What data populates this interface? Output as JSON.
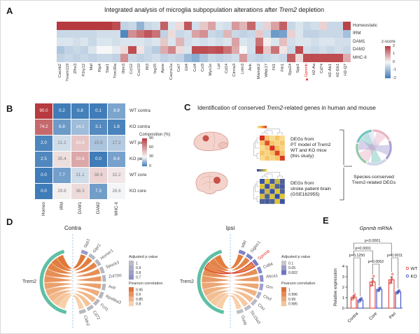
{
  "panel_a": {
    "label": "A",
    "title_pre": "Integrated analysis of microglia subpopulation alterations after ",
    "title_italic": "Trem2",
    "title_post": " depletion"
  },
  "panel_b": {
    "label": "B"
  },
  "panel_c": {
    "label": "C",
    "title_pre": "Identification of conserved ",
    "title_italic": "Trem2",
    "title_post": "-related genes in human and mouse",
    "mouse_lines": [
      "DEGs from",
      "PT model of Trem2",
      "WT and KO mice",
      "(this study)"
    ],
    "human_lines": [
      "DEGs from",
      "stroke patient brain",
      "(GSE162955)"
    ],
    "result_lines": [
      "Species-conserved",
      "Trem2-related DEGs"
    ],
    "icon_colors": [
      "#6ac4bd",
      "#ebb1c3",
      "#a99bd0",
      "#ccd3ec",
      "#8fc9a8"
    ],
    "mouse_matrix": [
      [
        1,
        0.3,
        0.15,
        0.3,
        0.15
      ],
      [
        0.3,
        0.85,
        0.3,
        0.2,
        0.3
      ],
      [
        0.15,
        0.3,
        1,
        0.35,
        0.2
      ],
      [
        0.3,
        0.2,
        0.35,
        0.9,
        0.3
      ],
      [
        0.15,
        0.3,
        0.2,
        0.3,
        0.95
      ]
    ],
    "human_matrix": [
      [
        0.1,
        0.9,
        0.15,
        0.8,
        0.2
      ],
      [
        0.9,
        0.1,
        0.85,
        0.2,
        0.15
      ],
      [
        0.15,
        0.8,
        0.1,
        0.9,
        0.2
      ],
      [
        0.85,
        0.2,
        0.9,
        0.05,
        0.9
      ],
      [
        0.2,
        0.15,
        0.2,
        0.9,
        0.1
      ]
    ]
  },
  "panel_d": {
    "label": "D"
  },
  "panel_e": {
    "label": "E",
    "title_italic": "Gpnmb",
    "title_post": " mRNA"
  },
  "chart_data": [
    {
      "id": "panel_a_heatmap",
      "type": "heatmap",
      "title": "Integrated analysis of microglia subpopulation alterations after Trem2 depletion",
      "rows": [
        "Homeostatic",
        "IRM",
        "DAM1",
        "DAM2",
        "MHC-II"
      ],
      "columns": [
        "Cacnb2",
        "Tmem119",
        "Zfhx3",
        "P2ry12",
        "Maf",
        "Rtp4",
        "Stat1",
        "Trim30a",
        "Ifitm3",
        "Ccl12",
        "Cxcl10",
        "Ifit3",
        "Isg15",
        "Apoe",
        "Cacna1a",
        "Cst7",
        "Etl4",
        "Ccl4",
        "Ccl3",
        "Myo1e",
        "Lpl",
        "Cd14",
        "Ctnna3",
        "Lrtm3",
        "Ank",
        "Mamdc2",
        "Wfdc17",
        "Ftl1",
        "Fth1",
        "Rps24",
        "Spp1",
        "Gpnmb",
        "H2-Aa",
        "Cd74",
        "H2-Ab1",
        "H2-Eb1",
        "H2-Q7"
      ],
      "values": [
        [
          2,
          2,
          2,
          2,
          2,
          2,
          2,
          1.8,
          -0.6,
          -0.5,
          -1.1,
          -0.5,
          -0.4,
          1.6,
          -0.3,
          0.3,
          1.7,
          -0.4,
          0.5,
          0.9,
          -0.3,
          -0.4,
          1.0,
          0.7,
          1.5,
          -0.4,
          0.4,
          0.9,
          1.6,
          -0.5,
          -0.3,
          -0.5,
          -0.4,
          0.4,
          -0.5,
          -0.5,
          1.9
        ],
        [
          -0.5,
          -0.5,
          -0.5,
          -0.5,
          -0.5,
          -0.4,
          -0.4,
          -0.4,
          -1.8,
          1.1,
          1.4,
          1.7,
          1.4,
          -0.6,
          0.3,
          -0.5,
          -0.4,
          0.9,
          1.1,
          -0.5,
          -0.6,
          0.7,
          -0.5,
          -0.6,
          -0.5,
          0.5,
          -0.5,
          -1.5,
          -1.4,
          0.4,
          -0.3,
          -0.6,
          -0.6,
          -0.5,
          -0.5,
          -0.5,
          -0.9
        ],
        [
          -0.3,
          -0.3,
          -0.4,
          -0.3,
          -0.5,
          -0.3,
          -0.3,
          -0.4,
          -0.3,
          -0.3,
          -0.3,
          -0.4,
          -0.3,
          0.5,
          -0.3,
          0.7,
          -0.4,
          -0.3,
          -0.4,
          -0.3,
          -0.4,
          -0.3,
          0.9,
          -0.3,
          -0.4,
          1.4,
          0.1,
          -0.3,
          0.6,
          -0.4,
          -0.3,
          -0.3,
          -0.4,
          -0.3,
          -0.3,
          -0.4,
          -0.4
        ],
        [
          -0.8,
          -0.6,
          -0.5,
          -0.6,
          -0.3,
          0,
          0,
          -0.2,
          0.3,
          1.8,
          0.2,
          -0.5,
          -0.7,
          0.8,
          1.2,
          0.3,
          -0.3,
          1.8,
          1.8,
          1.7,
          1.8,
          1.4,
          0.8,
          0,
          -0.4,
          1.8,
          0.5,
          1.4,
          0.2,
          -0.5,
          1.8,
          -0.4,
          -0.5,
          -0.4,
          -0.5,
          -0.4,
          -0.5
        ],
        [
          -0.6,
          -0.5,
          -0.6,
          -0.5,
          -0.6,
          -0.5,
          -0.5,
          -0.6,
          1.1,
          -0.5,
          -0.6,
          -0.5,
          -0.4,
          -0.6,
          -0.5,
          -0.6,
          -1.0,
          -1.2,
          -0.8,
          -0.5,
          -0.6,
          -0.5,
          -0.4,
          1.0,
          -0.5,
          -0.6,
          -0.5,
          -0.4,
          -0.5,
          1.6,
          0.3,
          1.8,
          1.8,
          1.8,
          1.8,
          1.8,
          0.8
        ]
      ],
      "value_range": [
        -2,
        2
      ],
      "colorbar": {
        "label": "z-score",
        "ticks": [
          "2",
          "1",
          "0",
          "-1",
          "-2"
        ]
      },
      "highlight_column": "Gpnmb",
      "palette": {
        "high": "#b63a3f",
        "mid": "#f7f7f7",
        "low": "#3f7cb8"
      }
    },
    {
      "id": "panel_b_composition",
      "type": "heatmap",
      "rows": [
        "WT contra",
        "KO contra",
        "WT peri",
        "KO peri",
        "WT core",
        "KO core"
      ],
      "columns": [
        "Homeo",
        "IRM",
        "DAM1",
        "DAM2",
        "MHC-II"
      ],
      "values": [
        [
          90.0,
          0.2,
          0.8,
          0.1,
          8.9
        ],
        [
          74.2,
          6.8,
          14.1,
          3.1,
          1.8
        ],
        [
          2.0,
          21.2,
          43.8,
          15.9,
          17.2
        ],
        [
          2.5,
          35.4,
          53.6,
          0.0,
          8.4
        ],
        [
          0.0,
          7.7,
          21.1,
          38.9,
          32.2
        ],
        [
          0.0,
          29.8,
          36.3,
          7.3,
          26.6
        ]
      ],
      "value_range": [
        0,
        90
      ],
      "colorbar": {
        "label": "Composition (%)",
        "ticks": [
          "90",
          "60",
          "30",
          "0"
        ]
      },
      "show_values": true
    },
    {
      "id": "panel_d_contra",
      "type": "chord",
      "title": "Contra",
      "source": "Trem2",
      "source_color": "#5fbfa5",
      "targets": [
        {
          "name": "Spp1",
          "pearson": 0.95,
          "arc_color": "#9a9cc9"
        },
        {
          "name": "Glpr1",
          "pearson": 0.94,
          "arc_color": "#b6b7bf"
        },
        {
          "name": "Homer1",
          "pearson": 0.93,
          "arc_color": "#b6b7bf"
        },
        {
          "name": "Spock3",
          "pearson": 0.91,
          "arc_color": "#b6b7bf"
        },
        {
          "name": "Znf700",
          "pearson": 0.9,
          "arc_color": "#b6b7bf"
        },
        {
          "name": "Avp",
          "pearson": 0.88,
          "arc_color": "#b6b7bf"
        },
        {
          "name": "Rps6ka3",
          "pearson": 0.86,
          "arc_color": "#b6b7bf"
        },
        {
          "name": "Fcrl1",
          "pearson": 0.84,
          "arc_color": "#b6b7bf"
        },
        {
          "name": "Cd72",
          "pearson": 0.82,
          "arc_color": "#b6b7bf"
        },
        {
          "name": "Cldn2",
          "pearson": 0.8,
          "arc_color": "#b6b7bf"
        }
      ],
      "r_range": [
        0.8,
        0.95
      ],
      "p_legend": {
        "title": "Adjusted p value",
        "ticks": [
          "1",
          "0.9",
          "0.8",
          "0.7"
        ],
        "top_color": "#babbc3",
        "bottom_color": "#8e91c4"
      },
      "r_legend": {
        "title": "Pearson correlation",
        "ticks": [
          "0.95",
          "0.9",
          "0.85",
          "0.8"
        ],
        "top_color": "#e0733a",
        "bottom_color": "#f6d2b0"
      }
    },
    {
      "id": "panel_d_ipsi",
      "type": "chord",
      "title": "Ipsi",
      "source": "Trem2",
      "source_color": "#5fbfa5",
      "highlight": "Gpnmb",
      "targets": [
        {
          "name": "Mlkl",
          "pearson": 0.999,
          "arc_color": "#7f83c5"
        },
        {
          "name": "Siglec1",
          "pearson": 0.998,
          "arc_color": "#7f83c5"
        },
        {
          "name": "Gpnmb",
          "pearson": 0.997,
          "arc_color": "#787cc6",
          "label_color": "#e0241b"
        },
        {
          "name": "Cd84",
          "pearson": 0.996,
          "arc_color": "#8487c6"
        },
        {
          "name": "Abca1",
          "pearson": 0.994,
          "arc_color": "#8d90c8"
        },
        {
          "name": "Grn",
          "pearson": 0.992,
          "arc_color": "#9fa1cd"
        },
        {
          "name": "Ctsd",
          "pearson": 0.99,
          "arc_color": "#b0b1cc"
        },
        {
          "name": "Ctsz",
          "pearson": 0.988,
          "arc_color": "#babbc4"
        },
        {
          "name": "Slc15a3",
          "pearson": 0.986,
          "arc_color": "#bcbdc4"
        },
        {
          "name": "Gusb",
          "pearson": 0.985,
          "arc_color": "#bebec5"
        }
      ],
      "r_range": [
        0.985,
        1
      ],
      "p_legend": {
        "title": "Adjusted p value",
        "ticks": [
          "0.1",
          "0.05",
          "0.002"
        ],
        "top_color": "#c6c7ce",
        "bottom_color": "#6f73c0"
      },
      "r_legend": {
        "title": "Pearson correlation",
        "ticks": [
          "1",
          "0.996",
          "0.99",
          "0.985"
        ],
        "top_color": "#de6f35",
        "bottom_color": "#f3c49c"
      }
    },
    {
      "id": "panel_e_bar",
      "type": "bar",
      "title": "Gpnmb mRNA",
      "ylabel": "Relative expression",
      "ylim": [
        0,
        4
      ],
      "yticks": [
        0,
        1,
        2,
        3,
        4
      ],
      "categories": [
        "Contra",
        "Core",
        "Peri"
      ],
      "series": [
        {
          "name": "WT",
          "color": "#e8413a",
          "values": [
            1.05,
            2.5,
            2.7
          ]
        },
        {
          "name": "KO",
          "color": "#3c4fc4",
          "values": [
            0.78,
            1.8,
            1.55
          ]
        }
      ],
      "sd": [
        [
          0.15,
          0.35,
          0.3
        ],
        [
          0.12,
          0.15,
          0.12
        ]
      ],
      "points": [
        [
          [
            0.85,
            1.0,
            1.15,
            1.3
          ],
          [
            2.15,
            2.4,
            2.6,
            3.05
          ],
          [
            2.4,
            2.6,
            2.85,
            3.25
          ]
        ],
        [
          [
            0.6,
            0.75,
            0.85,
            0.95
          ],
          [
            1.65,
            1.75,
            1.85,
            1.95
          ],
          [
            1.4,
            1.5,
            1.6,
            1.7
          ]
        ]
      ],
      "comparisons": [
        {
          "label": "p=0.1250",
          "from": "WT.Contra",
          "to": "KO.Contra"
        },
        {
          "label": "p=0.0062",
          "from": "WT.Core",
          "to": "KO.Core"
        },
        {
          "label": "p=0.0011",
          "from": "WT.Peri",
          "to": "KO.Peri"
        },
        {
          "label": "p=0.0001",
          "from": "WT.Contra",
          "to": "WT.Core"
        },
        {
          "label": "p<0.0001",
          "from": "WT.Contra",
          "to": "WT.Peri"
        }
      ]
    }
  ]
}
